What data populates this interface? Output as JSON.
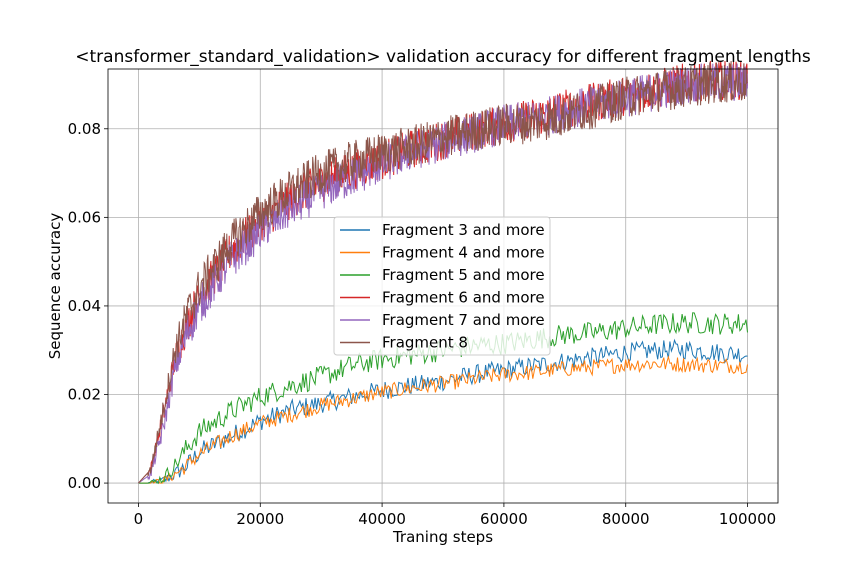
{
  "chart_data": {
    "type": "line",
    "title": "<transformer_standard_validation> validation accuracy for different fragment lengths",
    "xlabel": "Traning steps",
    "ylabel": "Sequence accuracy",
    "xlim": [
      -5000,
      105000
    ],
    "ylim": [
      -0.0045,
      0.0935
    ],
    "xticks": [
      0,
      20000,
      40000,
      60000,
      80000,
      100000
    ],
    "xtick_labels": [
      "0",
      "20000",
      "40000",
      "60000",
      "80000",
      "100000"
    ],
    "yticks": [
      0.0,
      0.02,
      0.04,
      0.06,
      0.08
    ],
    "ytick_labels": [
      "0.00",
      "0.02",
      "0.04",
      "0.06",
      "0.08"
    ],
    "grid": true,
    "legend_position": "center",
    "x": [
      0,
      2000,
      4000,
      6000,
      8000,
      10000,
      15000,
      20000,
      25000,
      30000,
      35000,
      40000,
      45000,
      50000,
      55000,
      60000,
      65000,
      70000,
      75000,
      80000,
      85000,
      90000,
      95000,
      100000
    ],
    "series": [
      {
        "name": "Fragment 3 and more",
        "color": "#1f77b4",
        "values": [
          0.0,
          0.0,
          0.0005,
          0.002,
          0.004,
          0.007,
          0.0105,
          0.014,
          0.0165,
          0.018,
          0.0195,
          0.021,
          0.022,
          0.023,
          0.0245,
          0.0255,
          0.0265,
          0.0275,
          0.0285,
          0.0295,
          0.03,
          0.0302,
          0.0295,
          0.029
        ]
      },
      {
        "name": "Fragment 4 and more",
        "color": "#ff7f0e",
        "values": [
          0.0,
          0.0,
          0.0005,
          0.002,
          0.004,
          0.0065,
          0.0105,
          0.0135,
          0.0155,
          0.0175,
          0.019,
          0.0205,
          0.0215,
          0.0225,
          0.0235,
          0.0245,
          0.025,
          0.0258,
          0.0262,
          0.0268,
          0.027,
          0.0268,
          0.0266,
          0.0265
        ]
      },
      {
        "name": "Fragment 5 and more",
        "color": "#2ca02c",
        "values": [
          0.0,
          0.0,
          0.001,
          0.004,
          0.008,
          0.0115,
          0.016,
          0.0195,
          0.022,
          0.024,
          0.0265,
          0.028,
          0.029,
          0.03,
          0.031,
          0.0315,
          0.0325,
          0.0335,
          0.034,
          0.035,
          0.0358,
          0.0362,
          0.036,
          0.036
        ]
      },
      {
        "name": "Fragment 6 and more",
        "color": "#d62728",
        "values": [
          0.0,
          0.003,
          0.015,
          0.028,
          0.036,
          0.042,
          0.052,
          0.059,
          0.064,
          0.068,
          0.0705,
          0.073,
          0.0755,
          0.0775,
          0.0795,
          0.081,
          0.0825,
          0.0845,
          0.086,
          0.0875,
          0.089,
          0.0905,
          0.091,
          0.091
        ]
      },
      {
        "name": "Fragment 7 and more",
        "color": "#9467bd",
        "values": [
          0.0,
          0.002,
          0.012,
          0.026,
          0.034,
          0.04,
          0.05,
          0.057,
          0.062,
          0.066,
          0.069,
          0.072,
          0.075,
          0.077,
          0.079,
          0.081,
          0.082,
          0.084,
          0.0855,
          0.087,
          0.0885,
          0.09,
          0.0905,
          0.0905
        ]
      },
      {
        "name": "Fragment 8",
        "color": "#8c564b",
        "values": [
          0.0,
          0.003,
          0.016,
          0.03,
          0.038,
          0.044,
          0.054,
          0.061,
          0.066,
          0.07,
          0.0725,
          0.0745,
          0.076,
          0.078,
          0.0795,
          0.081,
          0.0815,
          0.083,
          0.085,
          0.087,
          0.0885,
          0.0895,
          0.0905,
          0.0905
        ]
      }
    ]
  }
}
